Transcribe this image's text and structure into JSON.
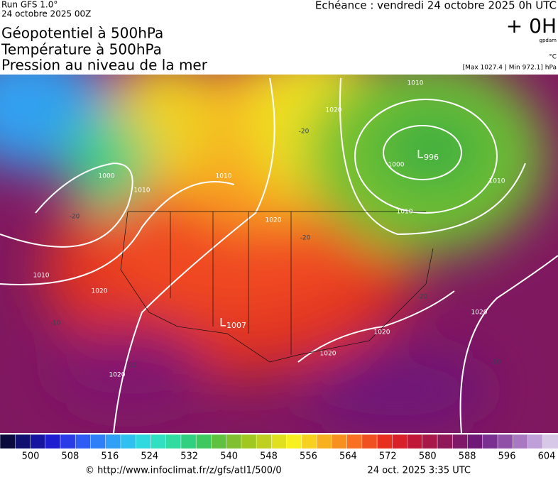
{
  "header": {
    "run": "Run GFS 1.0°",
    "date": "24 octobre 2025 00Z",
    "titles": [
      "Géopotentiel à 500hPa",
      "Température à 500hPa",
      "Pression au niveau de la mer"
    ],
    "forecast": "Echéance : vendredi 24 octobre 2025 0h UTC",
    "lead": "+ 0H",
    "unit_geo": "gpdam",
    "unit_temp": "°C",
    "pressure_range": "[Max 1027.4 | Min 972.1] hPa"
  },
  "map": {
    "contour_labels": [
      "1010",
      "1020",
      "1000",
      "1010",
      "1010",
      "1020",
      "1010",
      "1000",
      "1010",
      "1010",
      "1020",
      "1020",
      "1020",
      "1020",
      "1020",
      "-20",
      "-20",
      "-10",
      "-10",
      "-10",
      "-20",
      "-20"
    ],
    "pressure_centers": [
      {
        "symbol": "L",
        "value": 996
      },
      {
        "symbol": "L",
        "value": 1007
      }
    ]
  },
  "colorbar": {
    "colors": [
      "#0a0a3c",
      "#101070",
      "#1515a0",
      "#1e1ed0",
      "#2a3ce8",
      "#2f5cf5",
      "#2f80f8",
      "#2fa0f5",
      "#2fc0f0",
      "#30d8e0",
      "#30e0c0",
      "#30dca0",
      "#30d080",
      "#40c860",
      "#60c040",
      "#80c030",
      "#a0c820",
      "#c0d020",
      "#e0e020",
      "#f8f020",
      "#f8d020",
      "#f8b020",
      "#f89020",
      "#f87020",
      "#f05020",
      "#e83020",
      "#d82028",
      "#c01838",
      "#a81848",
      "#901858",
      "#801868",
      "#701878",
      "#7a3090",
      "#9050a8",
      "#a878c0",
      "#c0a0d8",
      "#d8c8e8"
    ],
    "ticks": [
      500,
      508,
      516,
      524,
      532,
      540,
      548,
      556,
      564,
      572,
      580,
      588,
      596,
      604
    ]
  },
  "footer": {
    "url": "© http://www.infoclimat.fr/z/gfs/atl1/500/0",
    "time": "24 oct. 2025  3:35 UTC"
  }
}
